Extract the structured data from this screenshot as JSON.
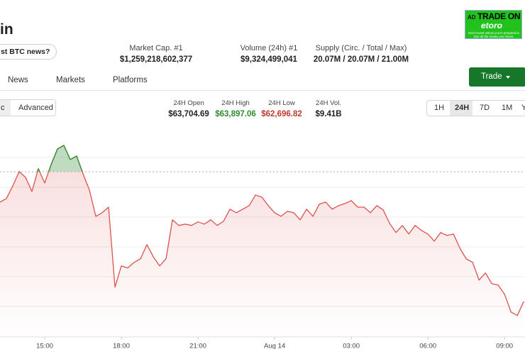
{
  "header": {
    "title": "in",
    "news_button": "st BTC news?"
  },
  "stats": [
    {
      "label": "Market Cap. #1",
      "value": "$1,259,218,602,377"
    },
    {
      "label": "Volume (24h) #1",
      "value": "$9,324,499,041"
    },
    {
      "label": "Supply (Circ. / Total / Max)",
      "value": "20.07M / 20.07M / 21.00M"
    }
  ],
  "ad": {
    "badge": "AD",
    "headline": "TRADE ON",
    "brand": "etoro",
    "disclaimer": "Don't invest unless you're prepared to lose all the money you invest."
  },
  "tabs": [
    "News",
    "Markets",
    "Platforms"
  ],
  "trade_button": "Trade",
  "view_toggle": [
    "c",
    "Advanced"
  ],
  "day_stats": [
    {
      "label": "24H Open",
      "value": "$63,704.69"
    },
    {
      "label": "24H High",
      "value": "$63,897.06"
    },
    {
      "label": "24H Low",
      "value": "$62,696.82"
    },
    {
      "label": "24H Vol.",
      "value": "$9.41B"
    }
  ],
  "timeframes": [
    "1H",
    "24H",
    "7D",
    "1M",
    "Y"
  ],
  "chart_data": {
    "type": "line",
    "reference_line": 63704.69,
    "color_up": "#2e8b2e",
    "color_down": "#d9534f",
    "xlim": [
      13.25,
      33.8
    ],
    "xticks": [
      {
        "value": 15,
        "label": "15:00"
      },
      {
        "value": 18,
        "label": "18:00"
      },
      {
        "value": 21,
        "label": "21:00"
      },
      {
        "value": 24,
        "label": "Aug 14"
      },
      {
        "value": 27,
        "label": "03:00"
      },
      {
        "value": 30,
        "label": "06:00"
      },
      {
        "value": 33,
        "label": "09:00"
      }
    ],
    "ylim": [
      62586,
      64003
    ],
    "x": [
      13.25,
      13.5,
      13.75,
      14,
      14.25,
      14.5,
      14.75,
      15,
      15.25,
      15.5,
      15.75,
      16,
      16.25,
      16.5,
      16.75,
      17,
      17.25,
      17.5,
      17.75,
      18,
      18.25,
      18.5,
      18.75,
      19,
      19.25,
      19.5,
      19.75,
      20,
      20.25,
      20.5,
      20.75,
      21,
      21.25,
      21.5,
      21.75,
      22,
      22.25,
      22.5,
      22.75,
      23,
      23.25,
      23.5,
      23.75,
      24,
      24.25,
      24.5,
      24.75,
      25,
      25.25,
      25.5,
      25.75,
      26,
      26.25,
      26.5,
      26.75,
      27,
      27.25,
      27.5,
      27.75,
      28,
      28.25,
      28.5,
      28.75,
      29,
      29.25,
      29.5,
      29.75,
      30,
      30.25,
      30.5,
      30.75,
      31,
      31.25,
      31.5,
      31.75,
      32,
      32.25,
      32.5,
      32.75,
      33,
      33.25,
      33.5,
      33.75
    ],
    "values": [
      63499,
      63523,
      63609,
      63705,
      63667,
      63571,
      63725,
      63629,
      63753,
      63859,
      63883,
      63787,
      63811,
      63691,
      63581,
      63403,
      63427,
      63465,
      62923,
      63067,
      63053,
      63091,
      63115,
      63211,
      63129,
      63067,
      63115,
      63379,
      63341,
      63350,
      63341,
      63365,
      63350,
      63379,
      63341,
      63369,
      63451,
      63427,
      63451,
      63475,
      63547,
      63533,
      63475,
      63427,
      63403,
      63437,
      63427,
      63379,
      63451,
      63403,
      63485,
      63499,
      63451,
      63475,
      63489,
      63509,
      63465,
      63465,
      63427,
      63475,
      63446,
      63355,
      63293,
      63341,
      63283,
      63341,
      63307,
      63283,
      63235,
      63293,
      63273,
      63283,
      63187,
      63115,
      63091,
      62971,
      63019,
      62947,
      62937,
      62875,
      62755,
      62731,
      62827
    ]
  }
}
